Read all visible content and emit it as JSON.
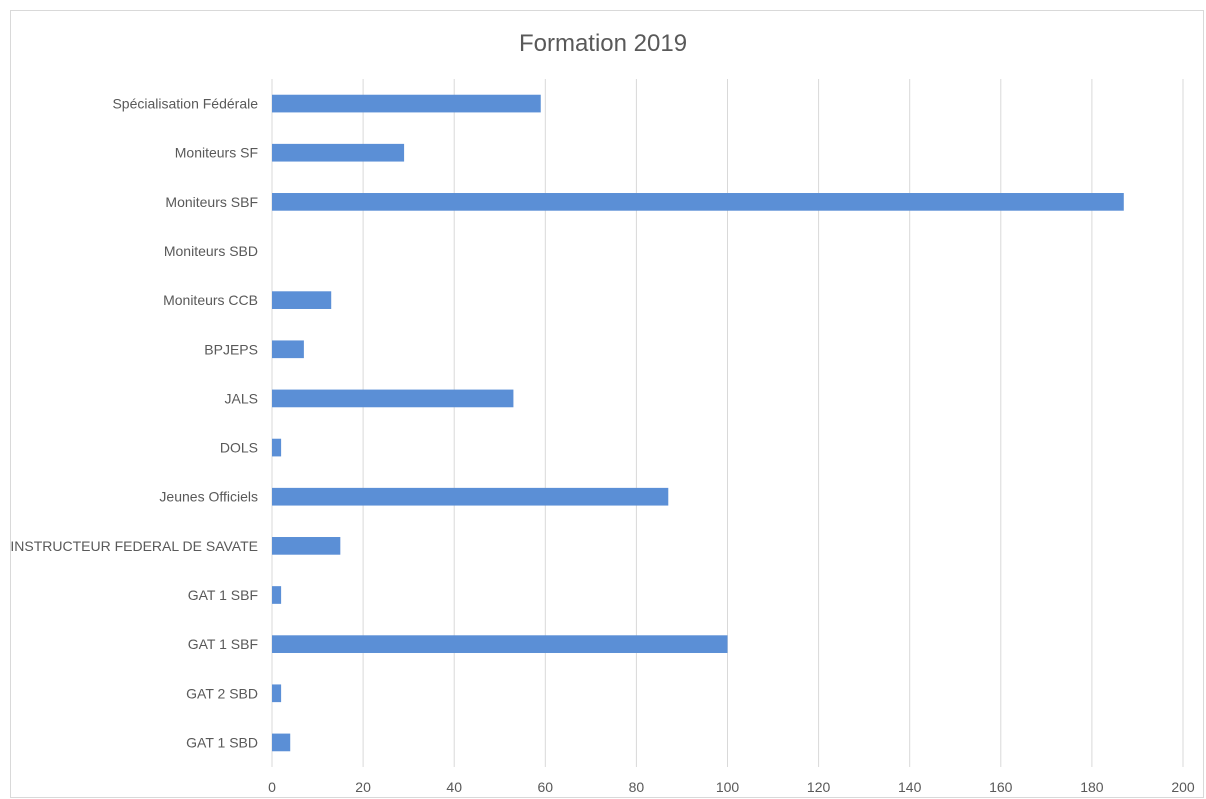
{
  "chart_data": {
    "type": "bar",
    "orientation": "horizontal",
    "title": "Formation 2019",
    "xlabel": "",
    "ylabel": "",
    "categories": [
      "Spécialisation Fédérale",
      "Moniteurs SF",
      "Moniteurs SBF",
      "Moniteurs SBD",
      "Moniteurs CCB",
      "BPJEPS",
      "JALS",
      "DOLS",
      "Jeunes Officiels",
      "INSTRUCTEUR FEDERAL DE SAVATE",
      "GAT 1 SBF",
      "GAT 1 SBF",
      "GAT 2 SBD",
      "GAT 1 SBD"
    ],
    "values": [
      59,
      29,
      187,
      0,
      13,
      7,
      53,
      2,
      87,
      15,
      2,
      100,
      2,
      4
    ],
    "xlim": [
      0,
      200
    ],
    "xticks": [
      0,
      20,
      40,
      60,
      80,
      100,
      120,
      140,
      160,
      180,
      200
    ],
    "grid": "vertical",
    "legend": "none",
    "bar_color": "#5b8fd6",
    "grid_color": "#d9d9d9"
  }
}
